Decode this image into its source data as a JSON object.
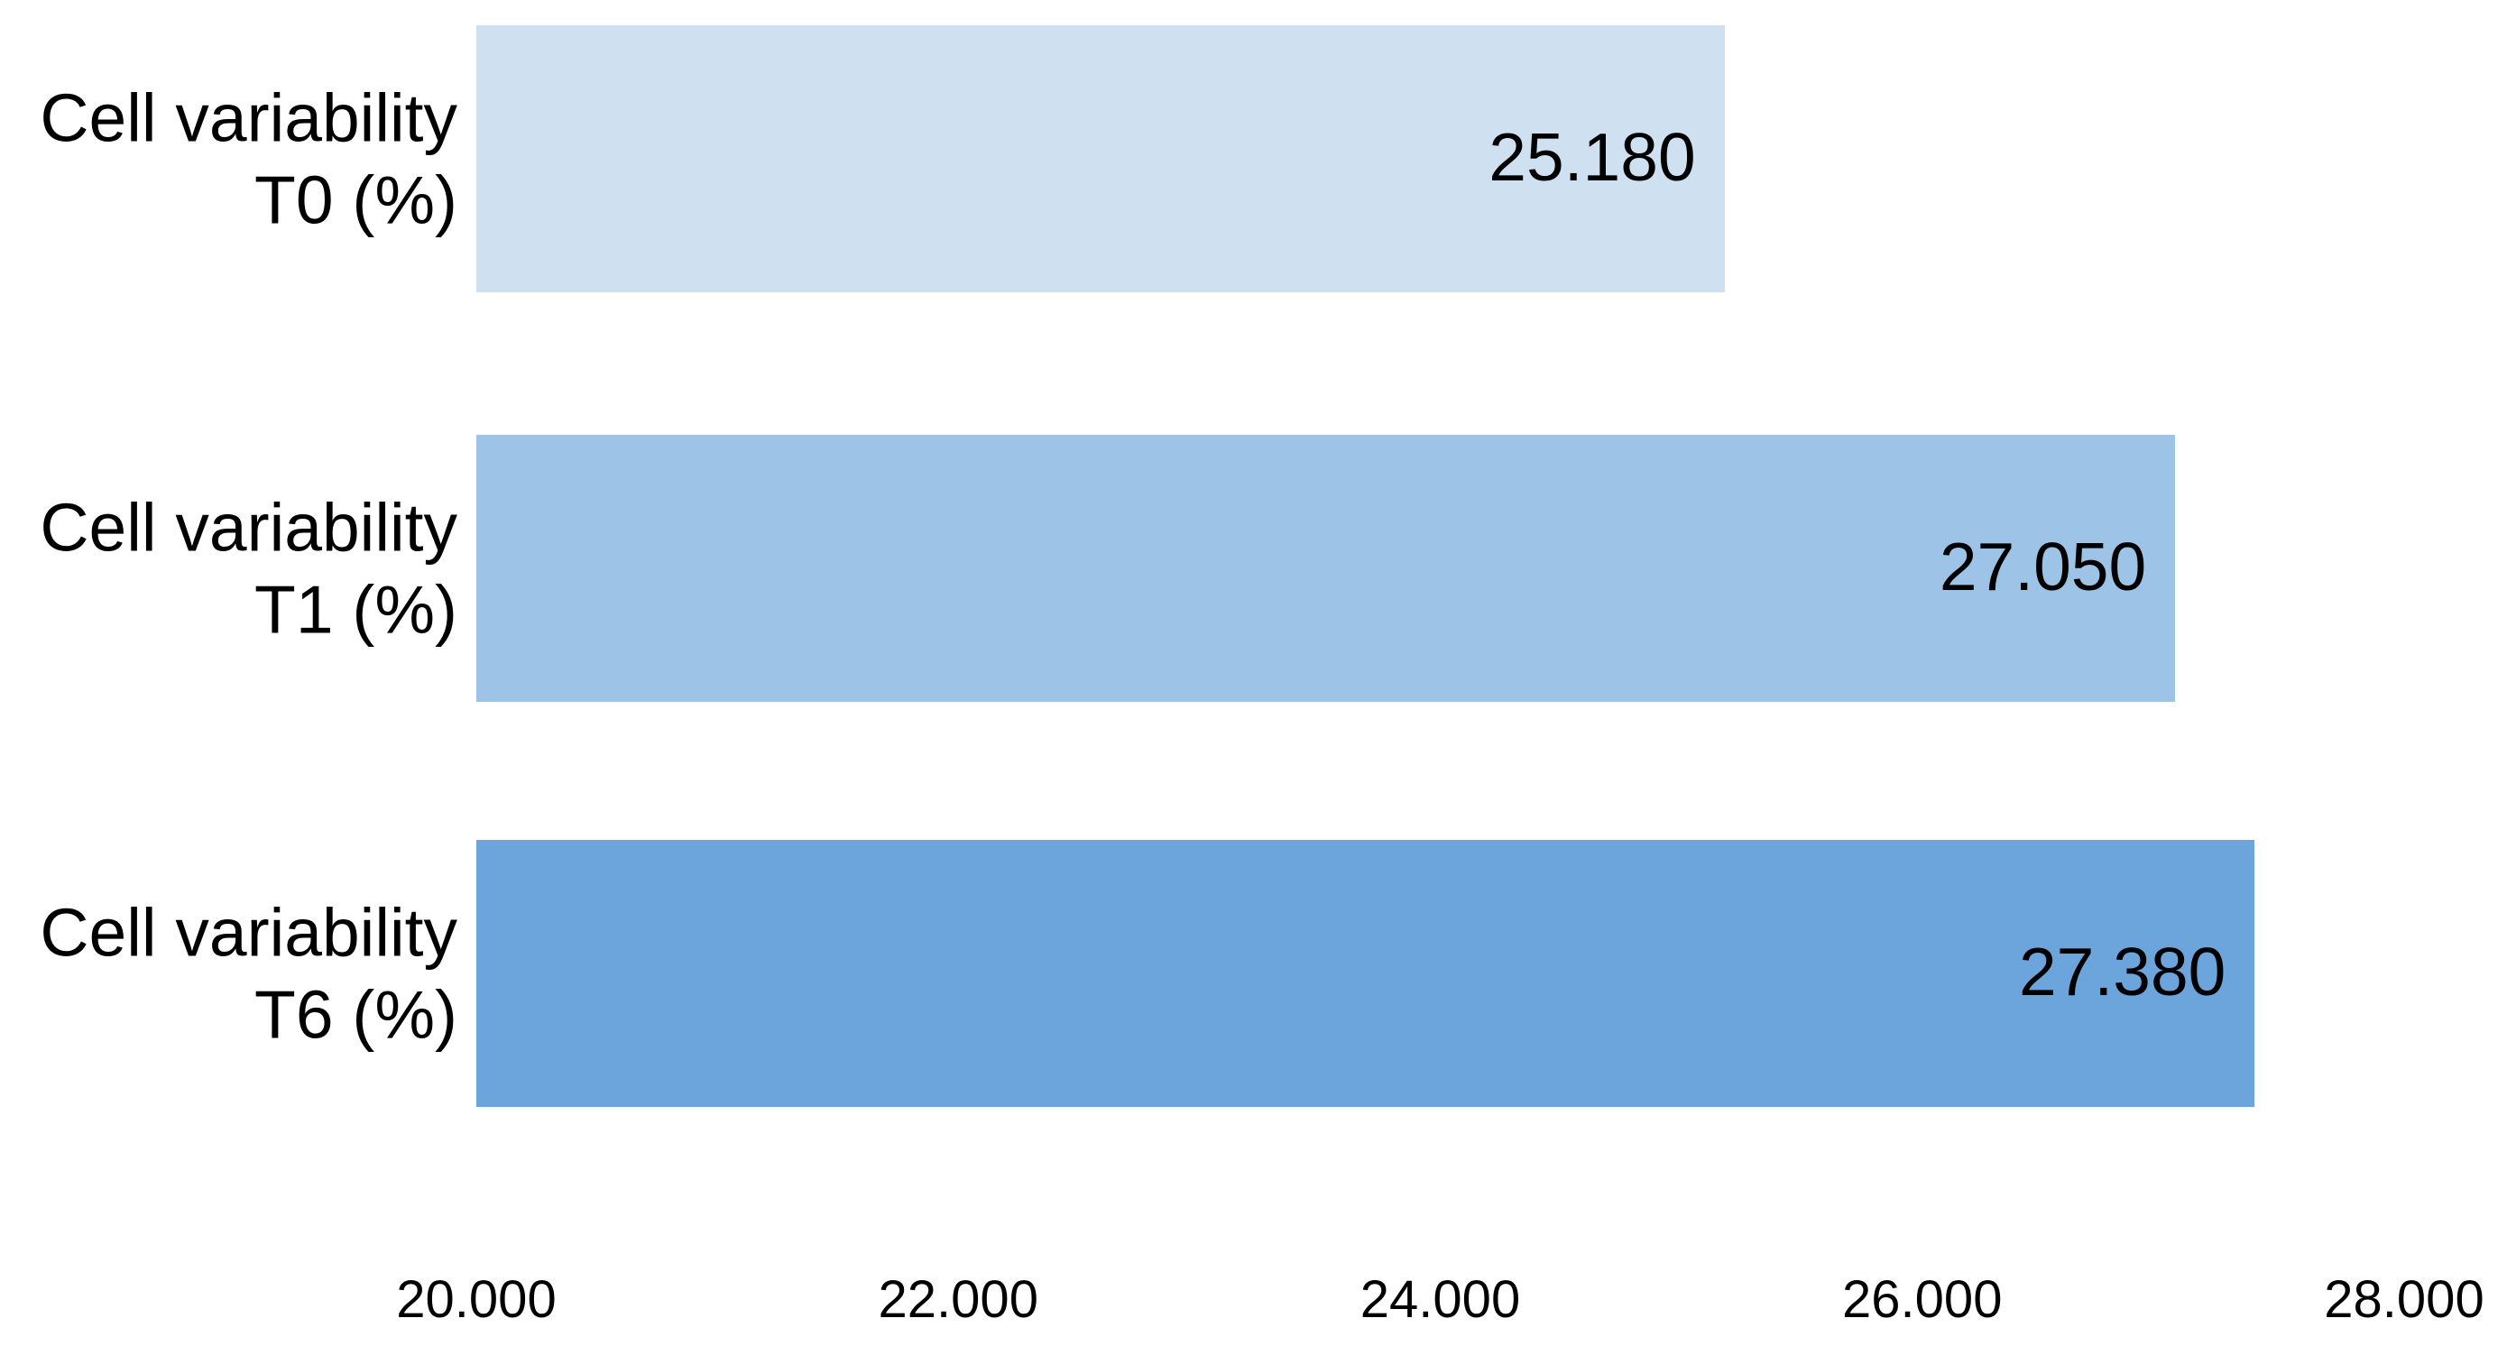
{
  "chart_data": {
    "type": "bar",
    "orientation": "horizontal",
    "title": "",
    "xlabel": "",
    "ylabel": "",
    "categories": [
      "Cell variability T0 (%)",
      "Cell variability T1 (%)",
      "Cell variability T6 (%)"
    ],
    "category_label_lines": [
      [
        "Cell variability",
        "T0 (%)"
      ],
      [
        "Cell variability",
        "T1 (%)"
      ],
      [
        "Cell variability",
        "T6 (%)"
      ]
    ],
    "values": [
      25180,
      27050,
      27380
    ],
    "value_labels": [
      "25.180",
      "27.050",
      "27.380"
    ],
    "value_label_position": "inside-end",
    "bar_colors": [
      "#cfe0f1",
      "#9dc3e7",
      "#6ca4dc"
    ],
    "xlim": [
      20000,
      28000
    ],
    "x_tick_values": [
      20000,
      22000,
      24000,
      26000,
      28000
    ],
    "x_tick_labels": [
      "20.000",
      "22.000",
      "24.000",
      "26.000",
      "28.000"
    ],
    "grid": false,
    "legend": false,
    "axis_lines": false,
    "background_color": "#ffffff",
    "text_color": "#000000"
  }
}
